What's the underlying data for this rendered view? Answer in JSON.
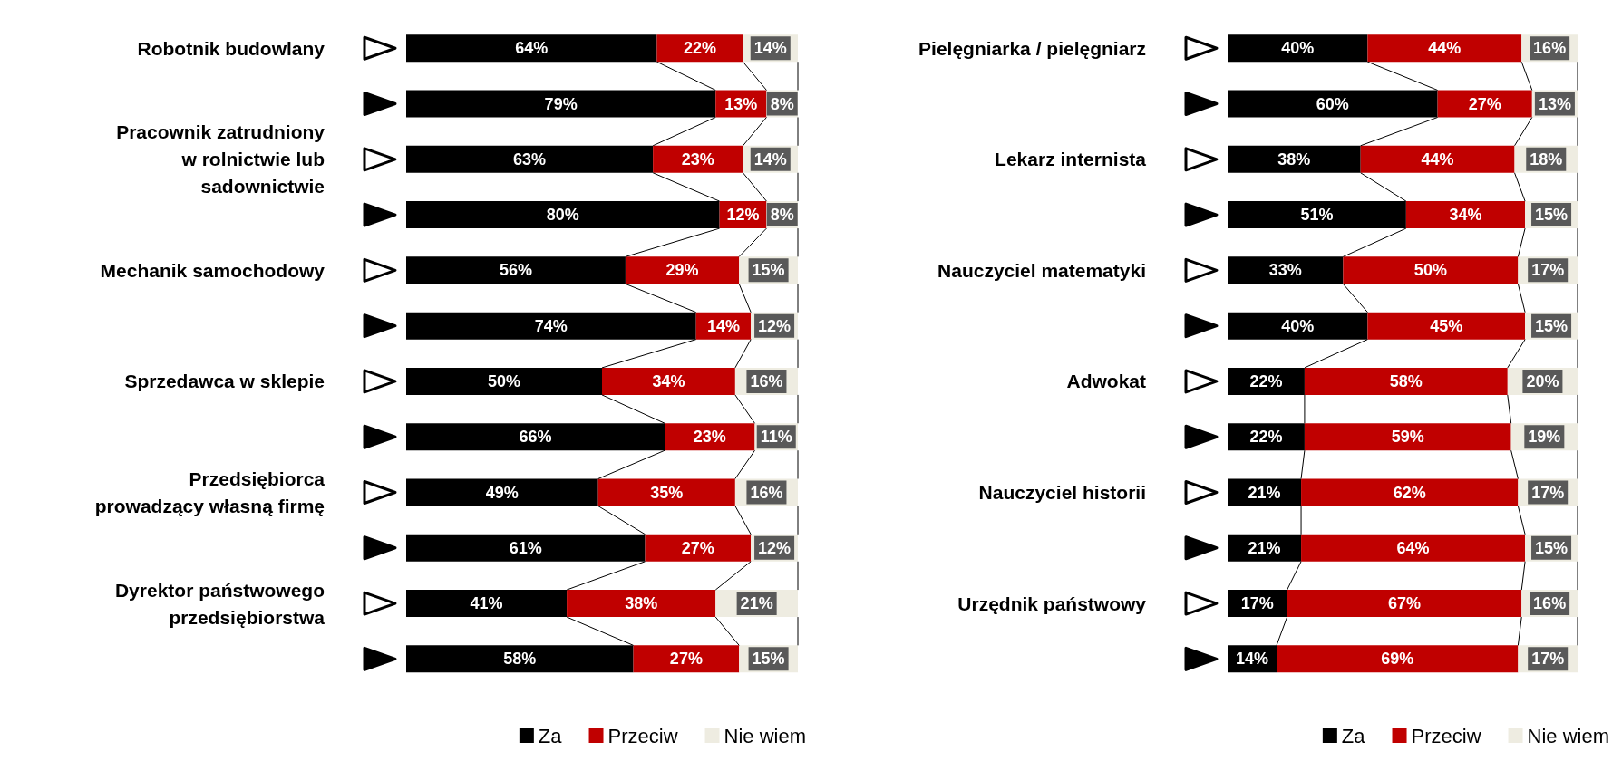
{
  "chart_data": [
    {
      "type": "bar",
      "orientation": "horizontal",
      "stacked": true,
      "categories": [
        "Robotnik budowlany",
        null,
        "Pracownik zatrudniony\nw rolnictwie lub\nsadownictwie",
        null,
        "Mechanik samochodowy",
        null,
        "Sprzedawca w sklepie",
        null,
        "Przedsiębiorca\nprowadzący własną firmę",
        null,
        "Dyrektor państwowego\nprzedsiębiorstwa",
        null
      ],
      "series": [
        {
          "name": "Za",
          "color": "#000000",
          "values": [
            64,
            79,
            63,
            80,
            56,
            74,
            50,
            66,
            49,
            61,
            41,
            58
          ],
          "value_labels": [
            "64%",
            "79%",
            "63%",
            "80%",
            "56%",
            "74%",
            "50%",
            "66%",
            "49%",
            "61%",
            "41%",
            "58%"
          ]
        },
        {
          "name": "Przeciw",
          "color": "#c00000",
          "values": [
            22,
            13,
            23,
            12,
            29,
            14,
            34,
            23,
            35,
            27,
            38,
            27
          ],
          "value_labels": [
            "22%",
            "13%",
            "23%",
            "12%",
            "29%",
            "14%",
            "34%",
            "23%",
            "35%",
            "27%",
            "38%",
            "27%"
          ]
        },
        {
          "name": "Nie wiem",
          "color": "#eeece1",
          "values": [
            14,
            8,
            14,
            8,
            15,
            12,
            16,
            11,
            16,
            12,
            21,
            15
          ],
          "value_labels": [
            "14%",
            "8%",
            "14%",
            "8%",
            "15%",
            "12%",
            "16%",
            "11%",
            "16%",
            "12%",
            "21%",
            "15%"
          ]
        }
      ],
      "legend": "bottom"
    },
    {
      "type": "bar",
      "orientation": "horizontal",
      "stacked": true,
      "categories": [
        "Pielęgniarka / pielęgniarz",
        null,
        "Lekarz internista",
        null,
        "Nauczyciel matematyki",
        null,
        "Adwokat",
        null,
        "Nauczyciel historii",
        null,
        "Urzędnik państwowy",
        null
      ],
      "series": [
        {
          "name": "Za",
          "color": "#000000",
          "values": [
            40,
            60,
            38,
            51,
            33,
            40,
            22,
            22,
            21,
            21,
            17,
            14
          ],
          "value_labels": [
            "40%",
            "60%",
            "38%",
            "51%",
            "33%",
            "40%",
            "22%",
            "22%",
            "21%",
            "21%",
            "17%",
            "14%"
          ]
        },
        {
          "name": "Przeciw",
          "color": "#c00000",
          "values": [
            44,
            27,
            44,
            34,
            50,
            45,
            58,
            59,
            62,
            64,
            67,
            69
          ],
          "value_labels": [
            "44%",
            "27%",
            "44%",
            "34%",
            "50%",
            "45%",
            "58%",
            "59%",
            "62%",
            "64%",
            "67%",
            "69%"
          ]
        },
        {
          "name": "Nie wiem",
          "color": "#eeece1",
          "values": [
            16,
            13,
            18,
            15,
            17,
            15,
            20,
            19,
            17,
            15,
            16,
            17
          ],
          "value_labels": [
            "16%",
            "13%",
            "18%",
            "15%",
            "17%",
            "15%",
            "20%",
            "19%",
            "17%",
            "15%",
            "16%",
            "17%"
          ]
        }
      ],
      "legend": "bottom"
    }
  ]
}
